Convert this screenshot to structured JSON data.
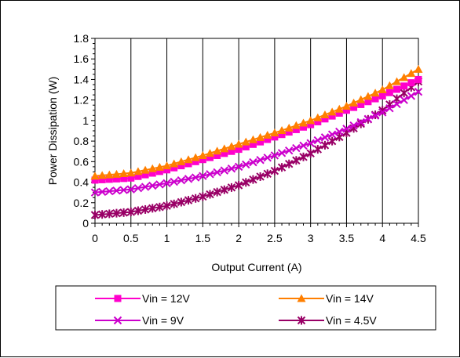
{
  "chart_data": {
    "type": "line",
    "title": "",
    "xlabel": "Output Current (A)",
    "ylabel": "Power Dissipation (W)",
    "xlim": [
      0,
      4.5
    ],
    "ylim": [
      0,
      1.8
    ],
    "xticks": [
      "0",
      "0.5",
      "1",
      "1.5",
      "2",
      "2.5",
      "3",
      "3.5",
      "4",
      "4.5"
    ],
    "yticks": [
      "0",
      "0.2",
      "0.4",
      "0.6",
      "0.8",
      "1",
      "1.2",
      "1.4",
      "1.6",
      "1.8"
    ],
    "grid": "vertical",
    "legend_position": "bottom",
    "series": [
      {
        "name": "Vin = 12V",
        "color": "#ff00cc",
        "marker": "square",
        "x": [
          0,
          0.5,
          1,
          1.5,
          2,
          2.5,
          3,
          3.5,
          4,
          4.5
        ],
        "y": [
          0.42,
          0.44,
          0.52,
          0.62,
          0.72,
          0.84,
          0.96,
          1.1,
          1.24,
          1.4
        ]
      },
      {
        "name": "Vin = 14V",
        "color": "#ff7f00",
        "marker": "triangle",
        "x": [
          0,
          0.5,
          1,
          1.5,
          2,
          2.5,
          3,
          3.5,
          4,
          4.5
        ],
        "y": [
          0.46,
          0.49,
          0.56,
          0.66,
          0.77,
          0.88,
          1.0,
          1.14,
          1.3,
          1.5
        ]
      },
      {
        "name": "Vin = 9V",
        "color": "#cc00cc",
        "marker": "x",
        "x": [
          0,
          0.5,
          1,
          1.5,
          2,
          2.5,
          3,
          3.5,
          4,
          4.5
        ],
        "y": [
          0.3,
          0.33,
          0.39,
          0.46,
          0.55,
          0.66,
          0.78,
          0.92,
          1.08,
          1.28
        ]
      },
      {
        "name": "Vin = 4.5V",
        "color": "#990066",
        "marker": "star",
        "x": [
          0,
          0.5,
          1,
          1.5,
          2,
          2.5,
          3,
          3.5,
          4,
          4.5
        ],
        "y": [
          0.08,
          0.11,
          0.17,
          0.26,
          0.37,
          0.51,
          0.68,
          0.88,
          1.1,
          1.38
        ]
      }
    ]
  }
}
